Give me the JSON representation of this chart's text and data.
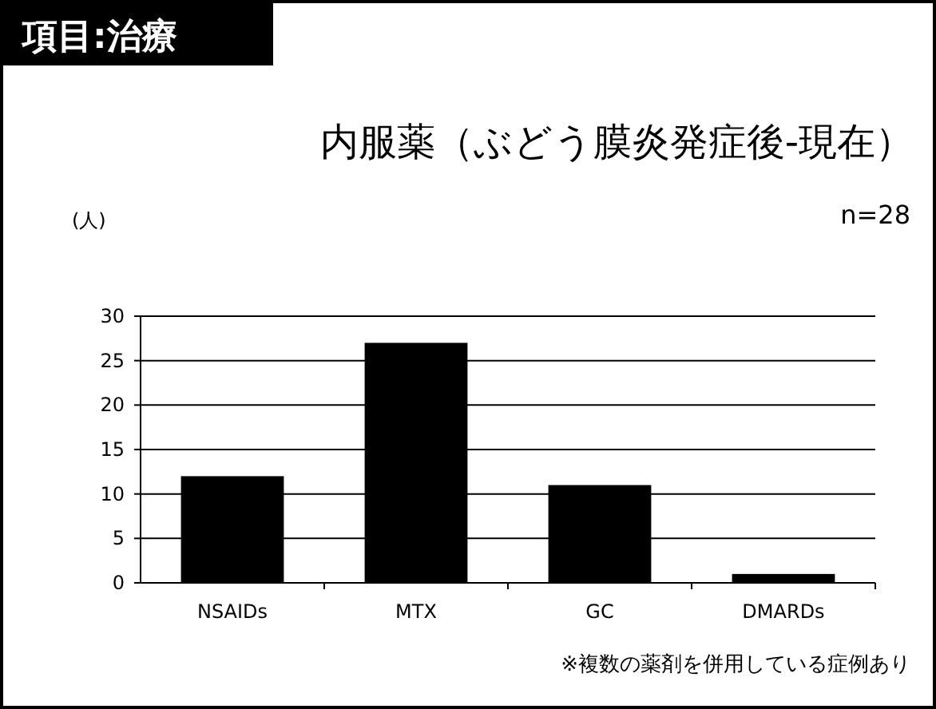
{
  "chart_data": {
    "type": "bar",
    "title": "内服薬（ぶどう膜炎発症後-現在）",
    "ylabel": "(人)",
    "annotations": [
      "項目:治療",
      "n=28",
      "※複数の薬剤を併用している症例あり"
    ],
    "categories": [
      "NSAIDs",
      "MTX",
      "GC",
      "DMARDs"
    ],
    "values": [
      12,
      27,
      11,
      1
    ],
    "color": "#000000",
    "ylim": [
      0,
      30
    ],
    "yticks": [
      0,
      5,
      10,
      15,
      20,
      25,
      30
    ],
    "grid": "y"
  }
}
